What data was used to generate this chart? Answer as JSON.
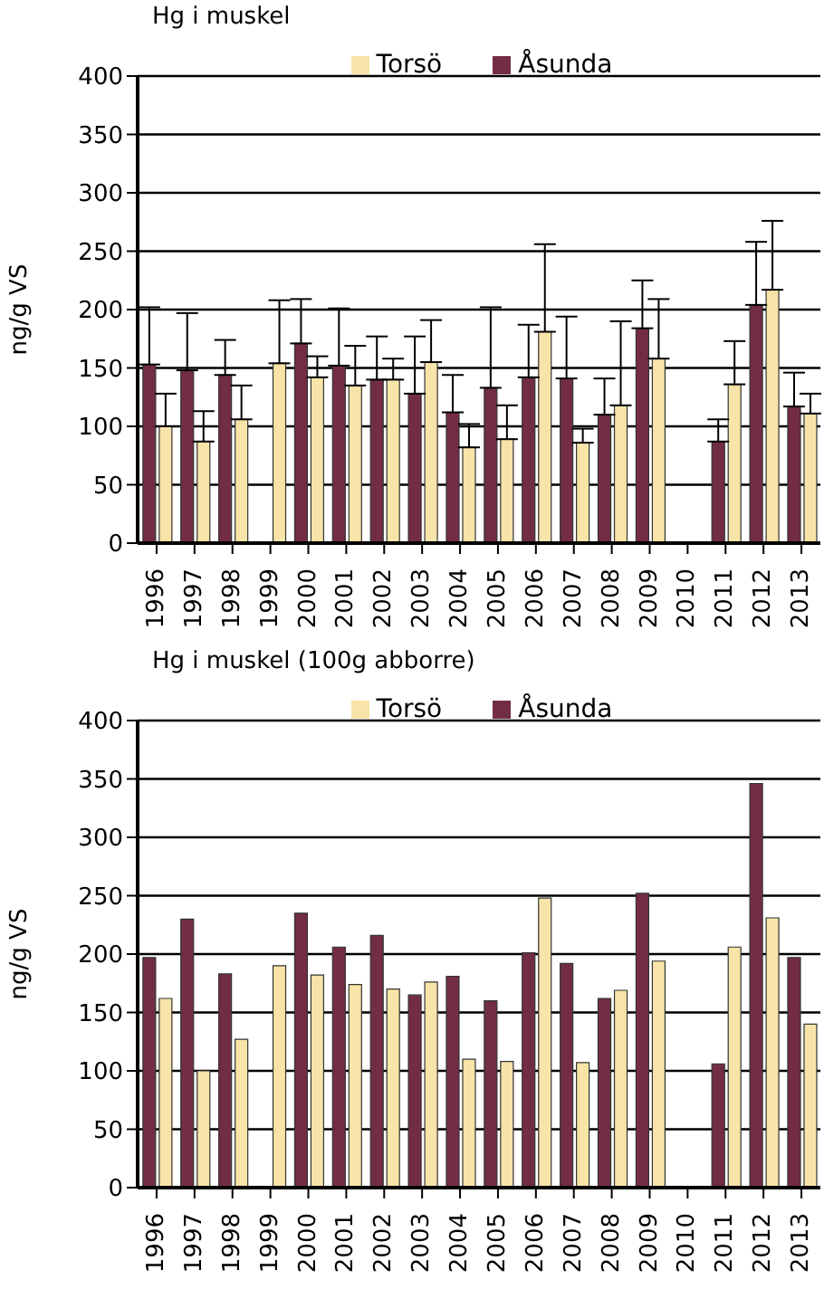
{
  "chart_data": [
    {
      "type": "bar",
      "title": "Hg i muskel",
      "ylabel": "ng/g VS",
      "categories": [
        "1996",
        "1997",
        "1998",
        "1999",
        "2000",
        "2001",
        "2002",
        "2003",
        "2004",
        "2005",
        "2006",
        "2007",
        "2008",
        "2009",
        "2010",
        "2011",
        "2012",
        "2013"
      ],
      "series": [
        {
          "name": "Åsunda",
          "color": "#722d45",
          "values": [
            153,
            148,
            144,
            null,
            171,
            152,
            140,
            128,
            112,
            133,
            142,
            141,
            110,
            184,
            null,
            87,
            204,
            117
          ],
          "errors": [
            [
              153,
              202
            ],
            [
              148,
              197
            ],
            [
              144,
              174
            ],
            null,
            [
              171,
              209
            ],
            [
              152,
              201
            ],
            [
              140,
              177
            ],
            [
              128,
              177
            ],
            [
              112,
              144
            ],
            [
              133,
              202
            ],
            [
              142,
              187
            ],
            [
              141,
              194
            ],
            [
              110,
              141
            ],
            [
              184,
              225
            ],
            null,
            [
              87,
              106
            ],
            [
              204,
              258
            ],
            [
              117,
              146
            ]
          ]
        },
        {
          "name": "Torsö",
          "color": "#f8e4a8",
          "values": [
            100,
            87,
            106,
            154,
            142,
            135,
            140,
            155,
            82,
            89,
            181,
            86,
            118,
            158,
            null,
            136,
            217,
            111
          ],
          "errors": [
            [
              100,
              128
            ],
            [
              87,
              113
            ],
            [
              106,
              135
            ],
            [
              154,
              208
            ],
            [
              142,
              160
            ],
            [
              135,
              169
            ],
            [
              140,
              158
            ],
            [
              155,
              191
            ],
            [
              82,
              102
            ],
            [
              89,
              118
            ],
            [
              181,
              256
            ],
            [
              86,
              98
            ],
            [
              118,
              190
            ],
            [
              158,
              209
            ],
            null,
            [
              136,
              173
            ],
            [
              217,
              276
            ],
            [
              111,
              128
            ]
          ]
        }
      ],
      "ylim": [
        0,
        400
      ],
      "yticks": [
        0,
        50,
        100,
        150,
        200,
        250,
        300,
        350,
        400
      ],
      "grid": "y",
      "legend": "top"
    },
    {
      "type": "bar",
      "title": "Hg i muskel (100g abborre)",
      "ylabel": "ng/g VS",
      "categories": [
        "1996",
        "1997",
        "1998",
        "1999",
        "2000",
        "2001",
        "2002",
        "2003",
        "2004",
        "2005",
        "2006",
        "2007",
        "2008",
        "2009",
        "2010",
        "2011",
        "2012",
        "2013"
      ],
      "series": [
        {
          "name": "Åsunda",
          "color": "#722d45",
          "values": [
            197,
            230,
            183,
            null,
            235,
            206,
            216,
            165,
            181,
            160,
            201,
            192,
            162,
            252,
            null,
            106,
            346,
            197
          ]
        },
        {
          "name": "Torsö",
          "color": "#f8e4a8",
          "values": [
            162,
            100,
            127,
            190,
            182,
            174,
            170,
            176,
            110,
            108,
            248,
            107,
            169,
            194,
            null,
            206,
            231,
            140
          ]
        }
      ],
      "ylim": [
        0,
        400
      ],
      "yticks": [
        0,
        50,
        100,
        150,
        200,
        250,
        300,
        350,
        400
      ],
      "grid": "y",
      "legend": "top"
    }
  ]
}
